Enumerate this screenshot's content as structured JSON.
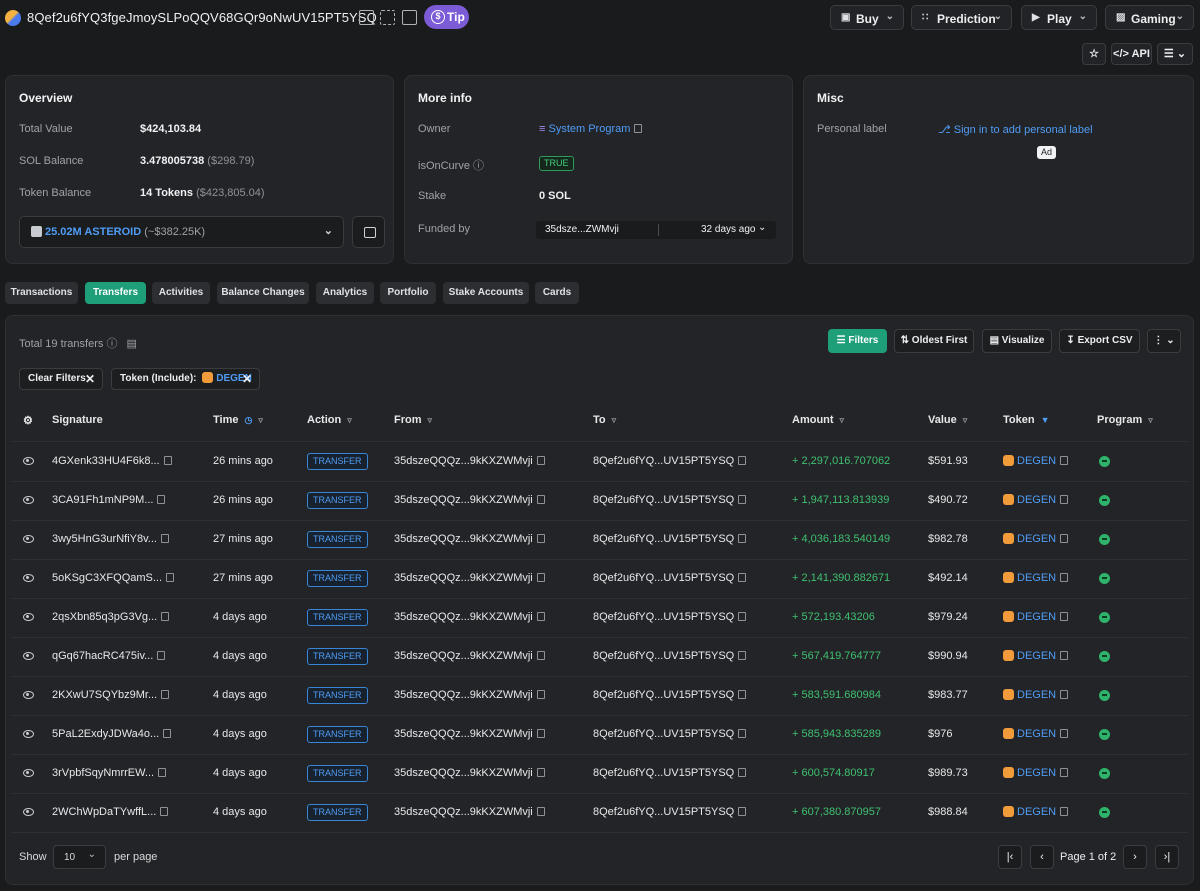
{
  "header": {
    "address": "8Qef2u6fYQ3fgeJmoySLPoQQV68GQr9oNwUV15PT5YSQ",
    "tip_label": "Tip",
    "buttons": [
      {
        "label": "Buy",
        "icon": "bag-icon"
      },
      {
        "label": "Prediction",
        "icon": "prediction-icon"
      },
      {
        "label": "Play",
        "icon": "play-icon"
      },
      {
        "label": "Gaming",
        "icon": "gamepad-icon"
      }
    ],
    "api_label": "API"
  },
  "overview": {
    "title": "Overview",
    "total_value_label": "Total Value",
    "total_value": "$424,103.84",
    "sol_balance_label": "SOL Balance",
    "sol_balance": "3.478005738",
    "sol_balance_usd": "($298.79)",
    "token_balance_label": "Token Balance",
    "token_balance": "14 Tokens",
    "token_balance_usd": "($423,805.04)",
    "selected_token": "25.02M ASTEROID",
    "selected_token_usd": "(~$382.25K)"
  },
  "more_info": {
    "title": "More info",
    "owner_label": "Owner",
    "owner_value": "System Program",
    "isoncurve_label": "isOnCurve",
    "isoncurve_value": "TRUE",
    "stake_label": "Stake",
    "stake_value": "0 SOL",
    "funded_label": "Funded by",
    "funded_addr": "35dsze...ZWMvji",
    "funded_time": "32 days ago"
  },
  "misc": {
    "title": "Misc",
    "personal_label": "Personal label",
    "sign_in_link": "Sign in to add personal label",
    "ad_badge": "Ad"
  },
  "tabs": [
    {
      "label": "Transactions",
      "active": false
    },
    {
      "label": "Transfers",
      "active": true
    },
    {
      "label": "Activities",
      "active": false
    },
    {
      "label": "Balance Changes",
      "active": false
    },
    {
      "label": "Analytics",
      "active": false
    },
    {
      "label": "Portfolio",
      "active": false
    },
    {
      "label": "Stake Accounts",
      "active": false
    },
    {
      "label": "Cards",
      "active": false
    }
  ],
  "transfers": {
    "total_label": "Total 19 transfers",
    "actions": {
      "filters": "Filters",
      "oldest_first": "Oldest First",
      "visualize": "Visualize",
      "export_csv": "Export CSV"
    },
    "chips": {
      "clear_filters": "Clear Filters",
      "token_include": "Token (Include):",
      "token_name": "DEGEN"
    },
    "columns": [
      "Signature",
      "Time",
      "Action",
      "From",
      "To",
      "Amount",
      "Value",
      "Token",
      "Program"
    ],
    "rows": [
      {
        "signature": "4GXenk33HU4F6k8...",
        "time": "26 mins ago",
        "action": "TRANSFER",
        "from": "35dszeQQQz...9kKXZWMvji",
        "to": "8Qef2u6fYQ...UV15PT5YSQ",
        "amount": "+ 2,297,016.707062",
        "value": "$591.93",
        "token": "DEGEN"
      },
      {
        "signature": "3CA91Fh1mNP9M...",
        "time": "26 mins ago",
        "action": "TRANSFER",
        "from": "35dszeQQQz...9kKXZWMvji",
        "to": "8Qef2u6fYQ...UV15PT5YSQ",
        "amount": "+ 1,947,113.813939",
        "value": "$490.72",
        "token": "DEGEN"
      },
      {
        "signature": "3wy5HnG3urNfiY8v...",
        "time": "27 mins ago",
        "action": "TRANSFER",
        "from": "35dszeQQQz...9kKXZWMvji",
        "to": "8Qef2u6fYQ...UV15PT5YSQ",
        "amount": "+ 4,036,183.540149",
        "value": "$982.78",
        "token": "DEGEN"
      },
      {
        "signature": "5oKSgC3XFQQamS...",
        "time": "27 mins ago",
        "action": "TRANSFER",
        "from": "35dszeQQQz...9kKXZWMvji",
        "to": "8Qef2u6fYQ...UV15PT5YSQ",
        "amount": "+ 2,141,390.882671",
        "value": "$492.14",
        "token": "DEGEN"
      },
      {
        "signature": "2qsXbn85q3pG3Vg...",
        "time": "4 days ago",
        "action": "TRANSFER",
        "from": "35dszeQQQz...9kKXZWMvji",
        "to": "8Qef2u6fYQ...UV15PT5YSQ",
        "amount": "+ 572,193.43206",
        "value": "$979.24",
        "token": "DEGEN"
      },
      {
        "signature": "qGq67hacRC475iv...",
        "time": "4 days ago",
        "action": "TRANSFER",
        "from": "35dszeQQQz...9kKXZWMvji",
        "to": "8Qef2u6fYQ...UV15PT5YSQ",
        "amount": "+ 567,419.764777",
        "value": "$990.94",
        "token": "DEGEN"
      },
      {
        "signature": "2KXwU7SQYbz9Mr...",
        "time": "4 days ago",
        "action": "TRANSFER",
        "from": "35dszeQQQz...9kKXZWMvji",
        "to": "8Qef2u6fYQ...UV15PT5YSQ",
        "amount": "+ 583,591.680984",
        "value": "$983.77",
        "token": "DEGEN"
      },
      {
        "signature": "5PaL2ExdyJDWa4o...",
        "time": "4 days ago",
        "action": "TRANSFER",
        "from": "35dszeQQQz...9kKXZWMvji",
        "to": "8Qef2u6fYQ...UV15PT5YSQ",
        "amount": "+ 585,943.835289",
        "value": "$976",
        "token": "DEGEN"
      },
      {
        "signature": "3rVpbfSqyNmrrEW...",
        "time": "4 days ago",
        "action": "TRANSFER",
        "from": "35dszeQQQz...9kKXZWMvji",
        "to": "8Qef2u6fYQ...UV15PT5YSQ",
        "amount": "+ 600,574.80917",
        "value": "$989.73",
        "token": "DEGEN"
      },
      {
        "signature": "2WChWpDaTYwffL...",
        "time": "4 days ago",
        "action": "TRANSFER",
        "from": "35dszeQQQz...9kKXZWMvji",
        "to": "8Qef2u6fYQ...UV15PT5YSQ",
        "amount": "+ 607,380.870957",
        "value": "$988.84",
        "token": "DEGEN"
      }
    ],
    "footer": {
      "show_label": "Show",
      "page_size": "10",
      "per_page_label": "per page",
      "page_info": "Page 1 of 2"
    }
  },
  "colors": {
    "accent_green": "#1f9e7a",
    "link_blue": "#4f9cf5",
    "amount_green": "#3fc070",
    "degen_orange": "#f29b3a",
    "tip_purple": "#7b5bd6"
  }
}
